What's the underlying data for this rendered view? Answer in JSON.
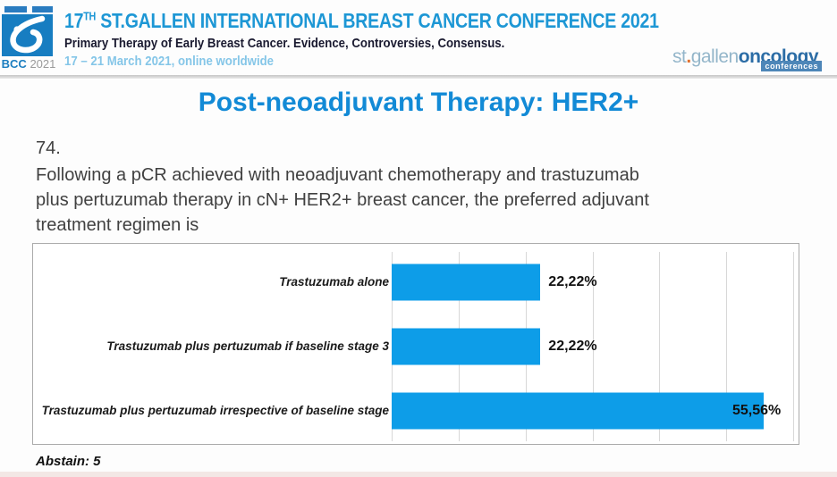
{
  "header": {
    "logo_badge": {
      "bcc": "BCC",
      "year": "2021"
    },
    "title_num": "17",
    "title_sup": "TH",
    "title_rest": " ST.GALLEN INTERNATIONAL BREAST CANCER CONFERENCE 2021",
    "subtitle": "Primary Therapy of Early Breast Cancer. Evidence, Controversies, Consensus.",
    "dates": "17 – 21 March 2021, online worldwide",
    "brand": {
      "st": "st",
      "dot": ".",
      "gallen": "gallen",
      "oncology": "oncology",
      "conferences": "conferences"
    }
  },
  "slide": {
    "title": "Post-neoadjuvant Therapy: HER2+",
    "question_number": "74.",
    "question_lines": [
      "Following a pCR achieved with neoadjuvant chemotherapy and trastuzumab",
      "plus pertuzumab therapy in cN+ HER2+ breast cancer, the preferred adjuvant",
      "treatment regimen is"
    ]
  },
  "chart_data": {
    "type": "bar",
    "orientation": "horizontal",
    "title": "",
    "categories": [
      "Trastuzumab alone",
      "Trastuzumab plus pertuzumab if baseline stage 3",
      "Trastuzumab plus pertuzumab irrespective of baseline stage"
    ],
    "values": [
      22.22,
      22.22,
      55.56
    ],
    "value_labels": [
      "22,22%",
      "22,22%",
      "55,56%"
    ],
    "xlim": [
      0,
      60
    ],
    "grid_step": 10,
    "grid": true,
    "legend": false,
    "bar_color": "#0d9de8",
    "footnote": "Abstain: 5"
  },
  "colors": {
    "header_blue": "#1d97d5",
    "slide_title_blue": "#128ad6",
    "bar_blue": "#0d9de8",
    "light_blue": "#85c6e8",
    "brand_orange": "#e2712e"
  }
}
